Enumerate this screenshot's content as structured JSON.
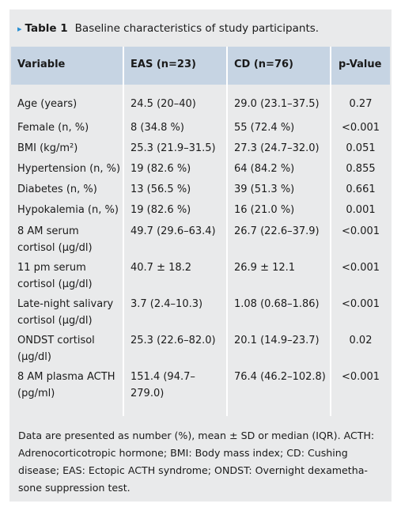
{
  "caption": {
    "marker": "▸",
    "number": "Table 1",
    "title": "Baseline characteristics of study participants."
  },
  "table": {
    "headers": [
      "Variable",
      "EAS (n=23)",
      "CD (n=76)",
      "p-Value"
    ],
    "rows": [
      {
        "variable": [
          "Age (years)"
        ],
        "eas": [
          "24.5 (20–40)"
        ],
        "cd": [
          "29.0 (23.1–37.5)"
        ],
        "p": "0.27"
      },
      {
        "variable": [
          "Female (n, %)"
        ],
        "eas": [
          "8 (34.8 %)"
        ],
        "cd": [
          "55 (72.4 %)"
        ],
        "p": "<0.001"
      },
      {
        "variable": [
          "BMI (kg/m²)"
        ],
        "eas": [
          "25.3 (21.9–31.5)"
        ],
        "cd": [
          "27.3 (24.7–32.0)"
        ],
        "p": "0.051"
      },
      {
        "variable": [
          "Hypertension (n, %)"
        ],
        "eas": [
          "19 (82.6 %)"
        ],
        "cd": [
          "64 (84.2 %)"
        ],
        "p": "0.855"
      },
      {
        "variable": [
          "Diabetes (n, %)"
        ],
        "eas": [
          "13 (56.5 %)"
        ],
        "cd": [
          "39 (51.3 %)"
        ],
        "p": "0.661"
      },
      {
        "variable": [
          "Hypokalemia (n, %)"
        ],
        "eas": [
          "19 (82.6 %)"
        ],
        "cd": [
          "16 (21.0 %)"
        ],
        "p": "0.001"
      },
      {
        "variable": [
          "8 AM serum",
          "cortisol (µg/dl)"
        ],
        "eas": [
          "49.7 (29.6–63.4)"
        ],
        "cd": [
          "26.7 (22.6–37.9)"
        ],
        "p": "<0.001"
      },
      {
        "variable": [
          "11 pm serum",
          "cortisol (µg/dl)"
        ],
        "eas": [
          "40.7 ± 18.2"
        ],
        "cd": [
          "26.9 ± 12.1"
        ],
        "p": "<0.001"
      },
      {
        "variable": [
          "Late-night salivary",
          "cortisol (µg/dl)"
        ],
        "eas": [
          "3.7 (2.4–10.3)"
        ],
        "cd": [
          "1.08 (0.68–1.86)"
        ],
        "p": "<0.001"
      },
      {
        "variable": [
          "ONDST cortisol",
          "(µg/dl)"
        ],
        "eas": [
          "25.3 (22.6–82.0)"
        ],
        "cd": [
          "20.1 (14.9–23.7)"
        ],
        "p": "0.02"
      },
      {
        "variable": [
          "8 AM plasma ACTH",
          "(pg/ml)"
        ],
        "eas": [
          "151.4 (94.7–",
          "279.0)"
        ],
        "cd": [
          "76.4 (46.2–102.8)"
        ],
        "p": "<0.001"
      }
    ]
  },
  "footnote": [
    "Data are presented as number (%), mean ± SD or median (IQR). ACTH:",
    "Adrenocorticotropic hormone; BMI: Body mass index; CD: Cushing",
    "disease; EAS: Ectopic ACTH syndrome; ONDST: Overnight dexametha-",
    "sone suppression test."
  ],
  "colors": {
    "header_bg": "#c6d4e3",
    "panel_bg": "#e9eaeb",
    "accent": "#2a8fd2"
  }
}
